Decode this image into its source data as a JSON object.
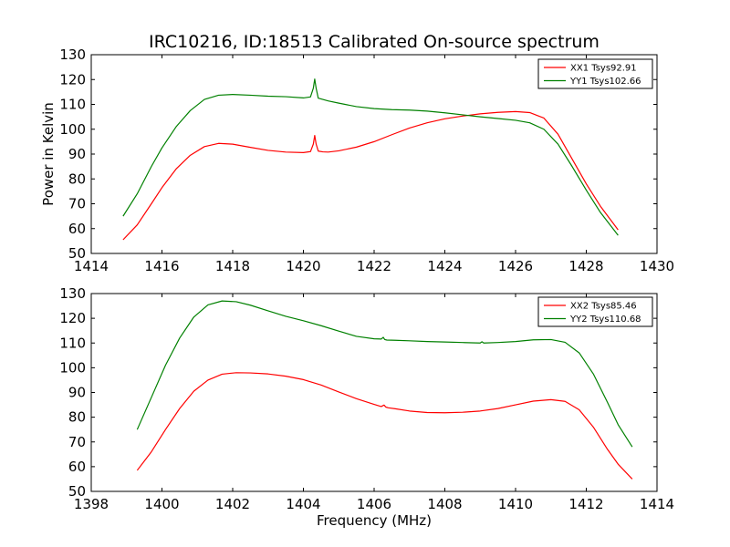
{
  "chart_data": [
    {
      "type": "line",
      "title": "IRC10216, ID:18513 Calibrated On-source spectrum",
      "xlabel": "",
      "ylabel": "Power in Kelvin",
      "xlim": [
        1414,
        1430
      ],
      "ylim": [
        50,
        130
      ],
      "xticks": [
        "1414",
        "1416",
        "1418",
        "1420",
        "1422",
        "1424",
        "1426",
        "1428",
        "1430"
      ],
      "yticks": [
        "50",
        "60",
        "70",
        "80",
        "90",
        "100",
        "110",
        "120",
        "130"
      ],
      "legend_position": "top-right",
      "grid": false,
      "series": [
        {
          "name": "XX1 Tsys92.91",
          "color": "#ff0000",
          "x": [
            1414.9,
            1415.3,
            1415.7,
            1416.0,
            1416.4,
            1416.8,
            1417.2,
            1417.6,
            1418.0,
            1418.5,
            1419.0,
            1419.5,
            1420.0,
            1420.2,
            1420.28,
            1420.32,
            1420.36,
            1420.42,
            1420.55,
            1420.7,
            1421.0,
            1421.5,
            1422.0,
            1422.5,
            1423.0,
            1423.5,
            1424.0,
            1424.5,
            1425.0,
            1425.5,
            1426.0,
            1426.4,
            1426.8,
            1427.2,
            1427.6,
            1428.0,
            1428.4,
            1428.9
          ],
          "y": [
            55.5,
            61.5,
            70,
            76.5,
            84,
            89.5,
            93,
            94.3,
            94,
            92.7,
            91.5,
            90.8,
            90.6,
            91.0,
            94,
            97.5,
            94,
            91.2,
            90.9,
            90.8,
            91.3,
            92.8,
            95,
            97.8,
            100.5,
            102.6,
            104.2,
            105.3,
            106.2,
            106.8,
            107.1,
            106.7,
            104.5,
            98,
            88,
            78,
            69,
            59.5
          ]
        },
        {
          "name": "YY1 Tsys102.66",
          "color": "#008000",
          "x": [
            1414.9,
            1415.3,
            1415.7,
            1416.0,
            1416.4,
            1416.8,
            1417.2,
            1417.6,
            1418.0,
            1418.5,
            1419.0,
            1419.5,
            1420.0,
            1420.2,
            1420.28,
            1420.32,
            1420.36,
            1420.42,
            1420.55,
            1420.7,
            1421.0,
            1421.5,
            1422.0,
            1422.5,
            1423.0,
            1423.5,
            1424.0,
            1424.5,
            1425.0,
            1425.5,
            1426.0,
            1426.4,
            1426.8,
            1427.2,
            1427.6,
            1428.0,
            1428.4,
            1428.9
          ],
          "y": [
            65,
            74,
            85,
            92.5,
            101,
            107.5,
            112,
            113.7,
            114,
            113.7,
            113.3,
            113.1,
            112.6,
            113.0,
            116.5,
            120.2,
            116.5,
            112.5,
            112.0,
            111.4,
            110.5,
            109.1,
            108.3,
            107.9,
            107.7,
            107.3,
            106.6,
            105.8,
            105,
            104.3,
            103.6,
            102.6,
            100,
            94,
            85,
            75.5,
            66.5,
            57.3
          ]
        }
      ]
    },
    {
      "type": "line",
      "title": "",
      "xlabel": "Frequency (MHz)",
      "ylabel": "",
      "xlim": [
        1398,
        1414
      ],
      "ylim": [
        50,
        130
      ],
      "xticks": [
        "1398",
        "1400",
        "1402",
        "1404",
        "1406",
        "1408",
        "1410",
        "1412",
        "1414"
      ],
      "yticks": [
        "50",
        "60",
        "70",
        "80",
        "90",
        "100",
        "110",
        "120",
        "130"
      ],
      "legend_position": "top-right",
      "grid": false,
      "series": [
        {
          "name": "XX2 Tsys85.46",
          "color": "#ff0000",
          "x": [
            1399.3,
            1399.7,
            1400.1,
            1400.5,
            1400.9,
            1401.3,
            1401.7,
            1402.1,
            1402.5,
            1403.0,
            1403.5,
            1404.0,
            1404.5,
            1405.0,
            1405.5,
            1406.0,
            1406.2,
            1406.28,
            1406.33,
            1406.4,
            1406.6,
            1407.0,
            1407.5,
            1408.0,
            1408.5,
            1409.0,
            1409.5,
            1410.0,
            1410.5,
            1411.0,
            1411.4,
            1411.8,
            1412.2,
            1412.6,
            1412.9,
            1413.3
          ],
          "y": [
            58.5,
            66,
            75,
            83.5,
            90.5,
            95,
            97.4,
            98.0,
            97.9,
            97.5,
            96.6,
            95.2,
            93,
            90.2,
            87.5,
            85.2,
            84.3,
            84.9,
            84.1,
            83.8,
            83.4,
            82.5,
            81.9,
            81.8,
            82,
            82.5,
            83.5,
            85,
            86.5,
            87.1,
            86.4,
            83,
            76,
            67,
            61,
            55
          ]
        },
        {
          "name": "YY2 Tsys110.68",
          "color": "#008000",
          "x": [
            1399.3,
            1399.7,
            1400.1,
            1400.5,
            1400.9,
            1401.3,
            1401.7,
            1402.1,
            1402.5,
            1403.0,
            1403.5,
            1404.0,
            1404.5,
            1405.0,
            1405.5,
            1406.0,
            1406.2,
            1406.26,
            1406.3,
            1406.36,
            1406.6,
            1407.0,
            1407.5,
            1408.0,
            1408.5,
            1409.0,
            1409.05,
            1409.1,
            1409.5,
            1410.0,
            1410.5,
            1411.0,
            1411.4,
            1411.8,
            1412.2,
            1412.6,
            1412.9,
            1413.3
          ],
          "y": [
            75,
            88,
            101,
            112,
            120.5,
            125.4,
            127,
            126.7,
            125.3,
            123,
            120.8,
            119,
            117,
            114.8,
            112.7,
            111.7,
            111.6,
            112.3,
            111.4,
            111.2,
            111.1,
            110.9,
            110.6,
            110.4,
            110.2,
            110.0,
            110.5,
            110.0,
            110.2,
            110.6,
            111.3,
            111.4,
            110.3,
            106,
            97.5,
            86,
            77,
            68
          ]
        }
      ]
    }
  ]
}
